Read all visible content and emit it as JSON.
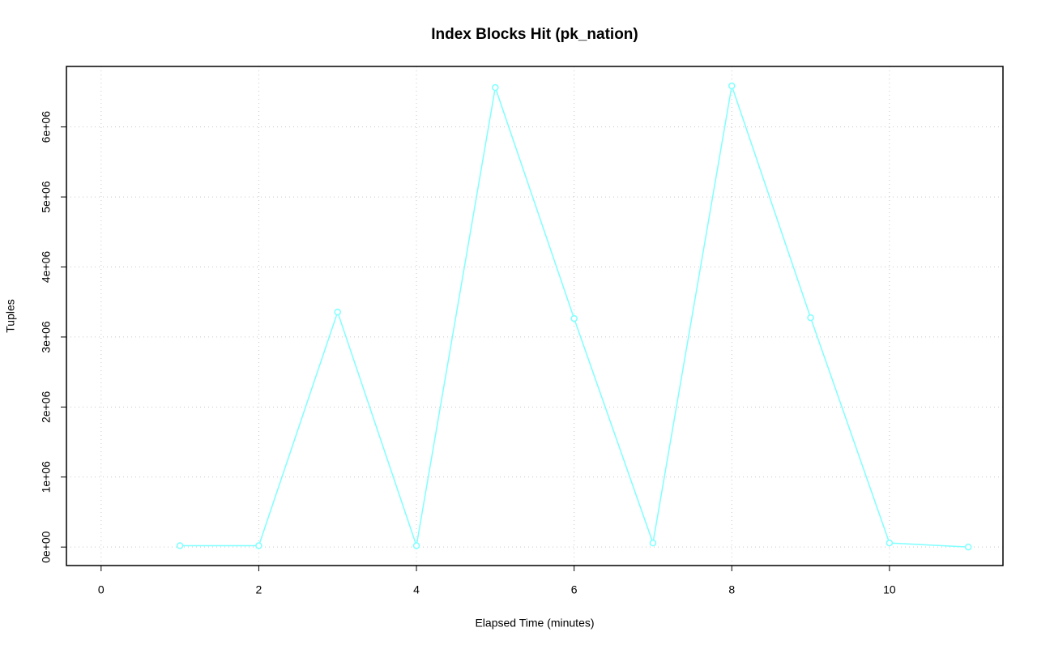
{
  "chart_data": {
    "type": "line",
    "title": "Index Blocks Hit (pk_nation)",
    "x_label": "Elapsed Time (minutes)",
    "y_label": "Tuples",
    "x": [
      1,
      2,
      3,
      4,
      5,
      6,
      7,
      8,
      9,
      10,
      11
    ],
    "series": [
      {
        "color": "#80ffff",
        "values": [
          20000,
          20000,
          3356000,
          20000,
          6563000,
          3264000,
          58000,
          6586000,
          3276000,
          58000,
          0
        ]
      }
    ],
    "xlim": [
      -0.44,
      11.44
    ],
    "xticks": [
      0,
      2,
      4,
      6,
      8,
      10
    ],
    "ylim": [
      -264000,
      6864000
    ],
    "yticks": [
      {
        "value": 0,
        "label": "0e+00"
      },
      {
        "value": 1000000,
        "label": "1e+06"
      },
      {
        "value": 2000000,
        "label": "2e+06"
      },
      {
        "value": 3000000,
        "label": "3e+06"
      },
      {
        "value": 4000000,
        "label": "4e+06"
      },
      {
        "value": 5000000,
        "label": "5e+06"
      },
      {
        "value": 6000000,
        "label": "6e+06"
      }
    ],
    "grid": true
  }
}
